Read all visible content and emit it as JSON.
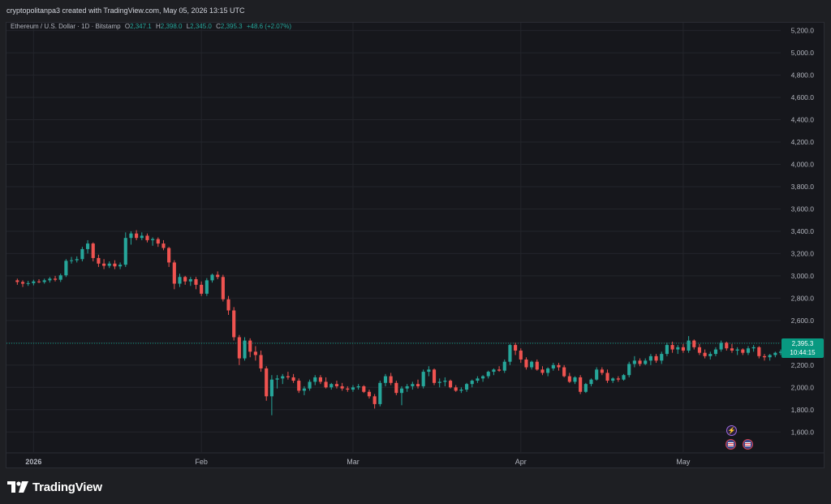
{
  "header": {
    "attribution": "cryptopolitanpa3 created with TradingView.com, May 05, 2026 13:15 UTC"
  },
  "legend": {
    "symbol": "Ethereum / U.S. Dollar · 1D · Bitstamp",
    "open_label": "O",
    "open": "2,347.1",
    "high_label": "H",
    "high": "2,398.0",
    "low_label": "L",
    "low": "2,345.0",
    "close_label": "C",
    "close": "2,395.3",
    "change": "+48.6 (+2.07%)"
  },
  "price_tag": {
    "price": "2,395.3",
    "countdown": "10:44:15"
  },
  "footer": {
    "brand": "TradingView"
  },
  "colors": {
    "up": "#26a69a",
    "down": "#ef5350",
    "background": "#16171c",
    "grid": "#23252b",
    "price_line": "#089981"
  },
  "icons": {
    "event_1": "lightning-icon",
    "event_2": "us-flag-icon",
    "event_3": "us-flag-icon"
  },
  "chart_data": {
    "type": "candlestick",
    "title": "Ethereum / U.S. Dollar · 1D · Bitstamp",
    "y_axis": {
      "position": "right",
      "ticks": [
        1600,
        1800,
        2000,
        2200,
        2400,
        2600,
        2800,
        3000,
        3200,
        3400,
        3600,
        3800,
        4000,
        4200,
        4400,
        4600,
        4800,
        5000,
        5200
      ],
      "tick_labels": [
        "1,600.0",
        "1,800.0",
        "2,000.0",
        "2,200.0",
        "2,400.0",
        "2,600.0",
        "2,800.0",
        "3,000.0",
        "3,200.0",
        "3,400.0",
        "3,600.0",
        "3,800.0",
        "4,000.0",
        "4,200.0",
        "4,400.0",
        "4,600.0",
        "4,800.0",
        "5,000.0",
        "5,200.0"
      ],
      "range": [
        1420,
        5270
      ]
    },
    "x_axis": {
      "tick_labels": [
        "2026",
        "Feb",
        "Mar",
        "Apr",
        "May"
      ],
      "tick_index": [
        3,
        34,
        62,
        93,
        123
      ],
      "range_index": [
        -2,
        141
      ]
    },
    "grid": true,
    "last_price": 2395.3,
    "candles": [
      [
        2960,
        2975,
        2920,
        2945
      ],
      [
        2945,
        2960,
        2900,
        2930
      ],
      [
        2930,
        2955,
        2910,
        2935
      ],
      [
        2935,
        2965,
        2915,
        2950
      ],
      [
        2950,
        2970,
        2935,
        2945
      ],
      [
        2945,
        2975,
        2930,
        2960
      ],
      [
        2960,
        2990,
        2940,
        2975
      ],
      [
        2975,
        3000,
        2950,
        2965
      ],
      [
        2965,
        3020,
        2945,
        3005
      ],
      [
        3005,
        3150,
        2990,
        3135
      ],
      [
        3135,
        3170,
        3110,
        3140
      ],
      [
        3140,
        3175,
        3120,
        3150
      ],
      [
        3150,
        3260,
        3130,
        3240
      ],
      [
        3240,
        3320,
        3200,
        3290
      ],
      [
        3290,
        3300,
        3130,
        3160
      ],
      [
        3160,
        3190,
        3080,
        3110
      ],
      [
        3110,
        3150,
        3060,
        3090
      ],
      [
        3090,
        3130,
        3070,
        3110
      ],
      [
        3110,
        3140,
        3060,
        3085
      ],
      [
        3085,
        3120,
        3060,
        3100
      ],
      [
        3100,
        3390,
        3080,
        3340
      ],
      [
        3340,
        3400,
        3280,
        3380
      ],
      [
        3380,
        3410,
        3320,
        3340
      ],
      [
        3340,
        3390,
        3320,
        3360
      ],
      [
        3360,
        3380,
        3300,
        3320
      ],
      [
        3320,
        3345,
        3270,
        3330
      ],
      [
        3330,
        3345,
        3260,
        3290
      ],
      [
        3290,
        3320,
        3230,
        3250
      ],
      [
        3250,
        3260,
        3080,
        3120
      ],
      [
        3120,
        3140,
        2880,
        2930
      ],
      [
        2930,
        3020,
        2900,
        2990
      ],
      [
        2990,
        3000,
        2920,
        2950
      ],
      [
        2950,
        2990,
        2910,
        2970
      ],
      [
        2970,
        2990,
        2880,
        2920
      ],
      [
        2920,
        2950,
        2820,
        2840
      ],
      [
        2840,
        2980,
        2820,
        2960
      ],
      [
        2960,
        3020,
        2940,
        3010
      ],
      [
        3010,
        3040,
        2970,
        2990
      ],
      [
        2990,
        3010,
        2770,
        2790
      ],
      [
        2790,
        2820,
        2650,
        2690
      ],
      [
        2690,
        2720,
        2420,
        2450
      ],
      [
        2450,
        2470,
        2200,
        2260
      ],
      [
        2260,
        2450,
        2240,
        2420
      ],
      [
        2420,
        2440,
        2270,
        2320
      ],
      [
        2320,
        2370,
        2240,
        2290
      ],
      [
        2290,
        2330,
        2140,
        2170
      ],
      [
        2170,
        2190,
        1880,
        1920
      ],
      [
        1920,
        2110,
        1750,
        2070
      ],
      [
        2070,
        2110,
        1990,
        2080
      ],
      [
        2080,
        2120,
        2030,
        2100
      ],
      [
        2100,
        2140,
        2070,
        2090
      ],
      [
        2090,
        2120,
        2040,
        2060
      ],
      [
        2060,
        2080,
        1950,
        1970
      ],
      [
        1970,
        2010,
        1930,
        1990
      ],
      [
        1990,
        2070,
        1970,
        2050
      ],
      [
        2050,
        2110,
        2020,
        2090
      ],
      [
        2090,
        2110,
        2030,
        2050
      ],
      [
        2050,
        2090,
        1990,
        2000
      ],
      [
        2000,
        2040,
        1980,
        2030
      ],
      [
        2030,
        2060,
        1990,
        2010
      ],
      [
        2010,
        2040,
        1970,
        1990
      ],
      [
        1990,
        2010,
        1960,
        1980
      ],
      [
        1980,
        2020,
        1960,
        2000
      ],
      [
        2000,
        2030,
        1980,
        2010
      ],
      [
        2010,
        2020,
        1950,
        1960
      ],
      [
        1960,
        1980,
        1900,
        1920
      ],
      [
        1920,
        1940,
        1810,
        1850
      ],
      [
        1850,
        2060,
        1830,
        2040
      ],
      [
        2040,
        2120,
        2010,
        2100
      ],
      [
        2100,
        2130,
        2020,
        2040
      ],
      [
        2040,
        2060,
        1930,
        1950
      ],
      [
        1950,
        2010,
        1840,
        1990
      ],
      [
        1990,
        2030,
        1960,
        2010
      ],
      [
        2010,
        2050,
        1980,
        2030
      ],
      [
        2030,
        2070,
        1990,
        2010
      ],
      [
        2010,
        2160,
        1990,
        2140
      ],
      [
        2140,
        2190,
        2100,
        2160
      ],
      [
        2160,
        2170,
        2020,
        2040
      ],
      [
        2040,
        2080,
        2000,
        2050
      ],
      [
        2050,
        2090,
        2010,
        2060
      ],
      [
        2060,
        2070,
        1990,
        2000
      ],
      [
        2000,
        2020,
        1960,
        1970
      ],
      [
        1970,
        2000,
        1950,
        1980
      ],
      [
        1980,
        2040,
        1960,
        2030
      ],
      [
        2030,
        2070,
        2000,
        2060
      ],
      [
        2060,
        2100,
        2040,
        2080
      ],
      [
        2080,
        2110,
        2050,
        2100
      ],
      [
        2100,
        2150,
        2080,
        2140
      ],
      [
        2140,
        2170,
        2110,
        2160
      ],
      [
        2160,
        2190,
        2140,
        2150
      ],
      [
        2150,
        2250,
        2130,
        2230
      ],
      [
        2230,
        2390,
        2200,
        2380
      ],
      [
        2380,
        2400,
        2290,
        2330
      ],
      [
        2330,
        2350,
        2220,
        2250
      ],
      [
        2250,
        2270,
        2160,
        2180
      ],
      [
        2180,
        2240,
        2160,
        2230
      ],
      [
        2230,
        2250,
        2150,
        2160
      ],
      [
        2160,
        2190,
        2110,
        2130
      ],
      [
        2130,
        2180,
        2100,
        2170
      ],
      [
        2170,
        2220,
        2150,
        2200
      ],
      [
        2200,
        2220,
        2150,
        2180
      ],
      [
        2180,
        2200,
        2090,
        2100
      ],
      [
        2100,
        2130,
        2040,
        2050
      ],
      [
        2050,
        2100,
        2030,
        2090
      ],
      [
        2090,
        2110,
        1940,
        1960
      ],
      [
        1960,
        2040,
        1950,
        2030
      ],
      [
        2030,
        2080,
        2010,
        2070
      ],
      [
        2070,
        2180,
        2060,
        2160
      ],
      [
        2160,
        2180,
        2110,
        2130
      ],
      [
        2130,
        2160,
        2040,
        2060
      ],
      [
        2060,
        2090,
        2040,
        2080
      ],
      [
        2080,
        2100,
        2050,
        2070
      ],
      [
        2070,
        2120,
        2060,
        2110
      ],
      [
        2110,
        2230,
        2090,
        2210
      ],
      [
        2210,
        2280,
        2180,
        2240
      ],
      [
        2240,
        2260,
        2190,
        2210
      ],
      [
        2210,
        2260,
        2200,
        2240
      ],
      [
        2240,
        2300,
        2200,
        2280
      ],
      [
        2280,
        2300,
        2220,
        2240
      ],
      [
        2240,
        2320,
        2210,
        2300
      ],
      [
        2300,
        2400,
        2280,
        2380
      ],
      [
        2380,
        2410,
        2310,
        2340
      ],
      [
        2340,
        2380,
        2300,
        2360
      ],
      [
        2360,
        2390,
        2310,
        2330
      ],
      [
        2330,
        2460,
        2310,
        2420
      ],
      [
        2420,
        2430,
        2340,
        2360
      ],
      [
        2360,
        2390,
        2290,
        2310
      ],
      [
        2310,
        2340,
        2260,
        2280
      ],
      [
        2280,
        2320,
        2250,
        2300
      ],
      [
        2300,
        2360,
        2280,
        2340
      ],
      [
        2340,
        2420,
        2320,
        2400
      ],
      [
        2400,
        2410,
        2330,
        2350
      ],
      [
        2350,
        2390,
        2310,
        2330
      ],
      [
        2330,
        2360,
        2290,
        2340
      ],
      [
        2340,
        2350,
        2290,
        2310
      ],
      [
        2310,
        2370,
        2290,
        2350
      ],
      [
        2350,
        2380,
        2320,
        2360
      ],
      [
        2360,
        2370,
        2260,
        2280
      ],
      [
        2280,
        2300,
        2240,
        2270
      ],
      [
        2270,
        2300,
        2240,
        2290
      ],
      [
        2290,
        2320,
        2270,
        2310
      ],
      [
        2310,
        2340,
        2290,
        2320
      ],
      [
        2320,
        2350,
        2300,
        2340
      ],
      [
        2347.1,
        2398.0,
        2345.0,
        2395.3
      ]
    ]
  }
}
